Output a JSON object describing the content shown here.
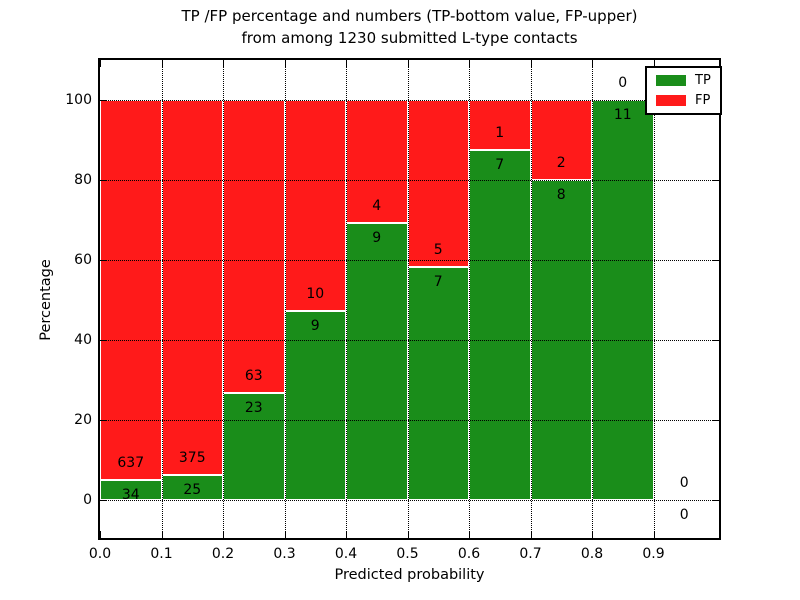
{
  "title": {
    "line1": "TP /FP percentage and numbers (TP-bottom value, FP-upper)",
    "line2": "from among 1230 submitted L-type contacts"
  },
  "axes": {
    "x_label": "Predicted probability",
    "y_label": "Percentage",
    "x_tick_labels": [
      "0.0",
      "0.1",
      "0.2",
      "0.3",
      "0.4",
      "0.5",
      "0.6",
      "0.7",
      "0.8",
      "0.9"
    ],
    "y_tick_labels": [
      "0",
      "20",
      "40",
      "60",
      "80",
      "100"
    ],
    "y_tick_values": [
      0,
      20,
      40,
      60,
      80,
      100
    ],
    "x_range": [
      0.0,
      1.0
    ],
    "y_range": [
      -10,
      110
    ],
    "grid_style": "dotted"
  },
  "legend": {
    "position": "upper-right",
    "items": [
      {
        "label": "TP",
        "color": "#1a8d1a"
      },
      {
        "label": "FP",
        "color": "#ff1a1a"
      }
    ]
  },
  "colors": {
    "tp": "#1a8d1a",
    "fp": "#ff1a1a",
    "grid": "#000000",
    "bar_edge": "#ffffff"
  },
  "chart_data": {
    "type": "bar",
    "stacked": true,
    "orientation": "vertical",
    "bin_width": 0.1,
    "total_contacts": 1230,
    "categories": [
      "0.0-0.1",
      "0.1-0.2",
      "0.2-0.3",
      "0.3-0.4",
      "0.4-0.5",
      "0.5-0.6",
      "0.6-0.7",
      "0.7-0.8",
      "0.8-0.9",
      "0.9-1.0"
    ],
    "series": [
      {
        "name": "TP",
        "color": "#1a8d1a",
        "counts": [
          34,
          25,
          23,
          9,
          9,
          7,
          7,
          8,
          11,
          0
        ]
      },
      {
        "name": "FP",
        "color": "#ff1a1a",
        "counts": [
          637,
          375,
          63,
          10,
          4,
          5,
          1,
          2,
          0,
          0
        ]
      }
    ],
    "bins": [
      {
        "range": "0.0-0.1",
        "tp": 34,
        "fp": 637,
        "tp_pct": 5.07,
        "fp_pct": 94.93
      },
      {
        "range": "0.1-0.2",
        "tp": 25,
        "fp": 375,
        "tp_pct": 6.25,
        "fp_pct": 93.75
      },
      {
        "range": "0.2-0.3",
        "tp": 23,
        "fp": 63,
        "tp_pct": 26.74,
        "fp_pct": 73.26
      },
      {
        "range": "0.3-0.4",
        "tp": 9,
        "fp": 10,
        "tp_pct": 47.37,
        "fp_pct": 52.63
      },
      {
        "range": "0.4-0.5",
        "tp": 9,
        "fp": 4,
        "tp_pct": 69.23,
        "fp_pct": 30.77
      },
      {
        "range": "0.5-0.6",
        "tp": 7,
        "fp": 5,
        "tp_pct": 58.33,
        "fp_pct": 41.67
      },
      {
        "range": "0.6-0.7",
        "tp": 7,
        "fp": 1,
        "tp_pct": 87.5,
        "fp_pct": 12.5
      },
      {
        "range": "0.7-0.8",
        "tp": 8,
        "fp": 2,
        "tp_pct": 80.0,
        "fp_pct": 20.0
      },
      {
        "range": "0.8-0.9",
        "tp": 11,
        "fp": 0,
        "tp_pct": 100.0,
        "fp_pct": 0.0
      },
      {
        "range": "0.9-1.0",
        "tp": 0,
        "fp": 0,
        "tp_pct": 0.0,
        "fp_pct": 0.0
      }
    ]
  }
}
